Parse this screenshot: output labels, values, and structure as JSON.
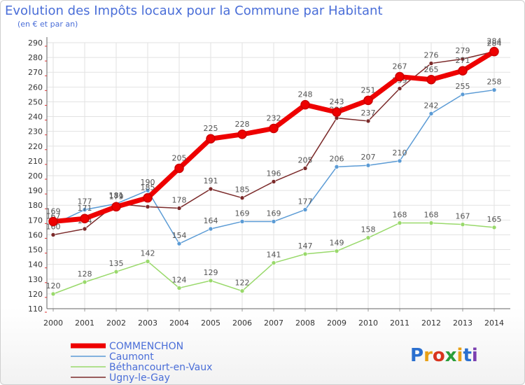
{
  "header": {
    "title": "Evolution des Impôts locaux pour la Commune par Habitant",
    "subtitle": "(en € et par an)"
  },
  "logo": {
    "text": "Proxiti",
    "letter_colors": [
      "#2a6fcf",
      "#e8a016",
      "#d8341e",
      "#2a9d3a",
      "#e8a016",
      "#2a6fcf",
      "#7b3fb0"
    ]
  },
  "chart_data": {
    "type": "line",
    "x": [
      2000,
      2001,
      2002,
      2003,
      2004,
      2005,
      2006,
      2007,
      2008,
      2009,
      2010,
      2011,
      2012,
      2013,
      2014
    ],
    "ylim": [
      110,
      290
    ],
    "yticks": [
      110,
      120,
      130,
      140,
      150,
      160,
      170,
      180,
      190,
      200,
      210,
      220,
      230,
      240,
      250,
      260,
      270,
      280,
      290
    ],
    "grid": true,
    "legend_position": "bottom-left",
    "series": [
      {
        "name": "Caumont",
        "color": "#5b9bd5",
        "values": [
          167,
          177,
          181,
          190,
          154,
          164,
          169,
          169,
          177,
          206,
          207,
          210,
          242,
          255,
          258
        ],
        "labels": [
          "167",
          "177",
          "181",
          "190",
          "154",
          "164",
          "169",
          "169",
          "177",
          "206",
          "207",
          "210",
          "242",
          "255",
          "258"
        ]
      },
      {
        "name": "Béthancourt-en-Vaux",
        "color": "#99d96b",
        "values": [
          120,
          128,
          135,
          142,
          124,
          129,
          122,
          141,
          147,
          149,
          158,
          168,
          168,
          167,
          165
        ],
        "labels": [
          "120",
          "128",
          "135",
          "142",
          "124",
          "129",
          "122",
          "141",
          "147",
          "149",
          "158",
          "168",
          "168",
          "167",
          "165"
        ]
      },
      {
        "name": "Ugny-le-Gay",
        "color": "#7b2a2a",
        "values": [
          160,
          164,
          181,
          179,
          178,
          191,
          185,
          196,
          205,
          239,
          237,
          259,
          276,
          279,
          284
        ],
        "labels": [
          "160",
          "164",
          "181",
          "",
          "178",
          "191",
          "185",
          "196",
          "205",
          "239",
          "237",
          "259",
          "276",
          "279",
          "284"
        ]
      },
      {
        "name": "COMMENCHON",
        "color": "#ee0000",
        "values": [
          169,
          171,
          179,
          185,
          205,
          225,
          228,
          232,
          248,
          243,
          251,
          267,
          265,
          271,
          284
        ],
        "labels": [
          "169",
          "171",
          "179",
          "185",
          "205",
          "225",
          "228",
          "232",
          "248",
          "243",
          "251",
          "267",
          "265",
          "271",
          "284"
        ]
      }
    ],
    "legend": [
      {
        "name": "COMMENCHON",
        "color": "#ee0000",
        "thick": true
      },
      {
        "name": "Caumont",
        "color": "#5b9bd5",
        "thick": false
      },
      {
        "name": "Béthancourt-en-Vaux",
        "color": "#99d96b",
        "thick": false
      },
      {
        "name": "Ugny-le-Gay",
        "color": "#7b2a2a",
        "thick": false
      }
    ]
  }
}
